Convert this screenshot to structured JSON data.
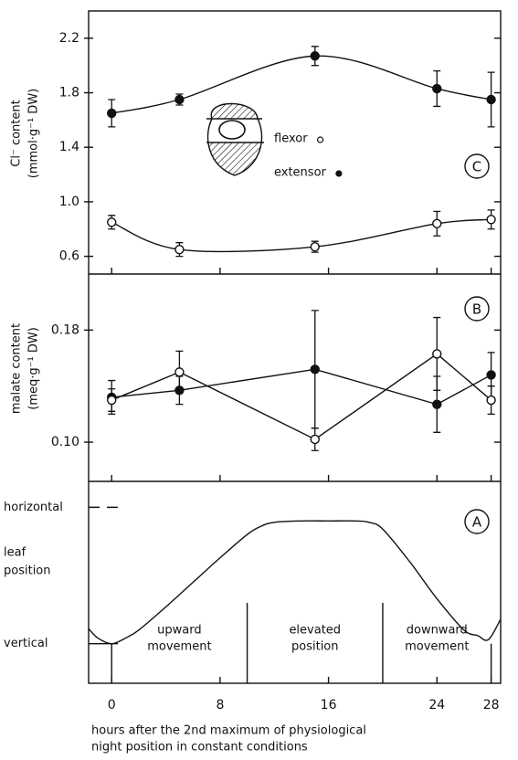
{
  "chart_data": [
    {
      "type": "line",
      "panel": "C",
      "smooth": true,
      "ylabel": [
        "Cl⁻ content",
        "(mmol·g⁻¹ DW)"
      ],
      "xlim": [
        -1.7,
        28.7
      ],
      "ylim": [
        0.47,
        2.4
      ],
      "yticks": [
        0.6,
        {
          "value": 1,
          "label": "1.0"
        },
        1.4,
        1.8,
        2.2
      ],
      "series": [
        {
          "name": "extensor",
          "color": "#111",
          "marker": "filled",
          "x": [
            0,
            5,
            15,
            24,
            28
          ],
          "values": [
            1.65,
            1.75,
            2.07,
            1.83,
            1.75
          ],
          "errors": [
            0.1,
            0.04,
            0.07,
            0.13,
            0.2
          ]
        },
        {
          "name": "flexor",
          "color": "#111",
          "marker": "open",
          "x": [
            0,
            5,
            15,
            24,
            28
          ],
          "values": [
            0.85,
            0.65,
            0.67,
            0.84,
            0.87
          ],
          "errors": [
            0.05,
            0.05,
            0.04,
            0.09,
            0.07
          ]
        }
      ]
    },
    {
      "type": "line",
      "panel": "B",
      "smooth": false,
      "ylabel": [
        "malate content",
        "(meq·g⁻¹ DW)"
      ],
      "xlim": [
        -1.7,
        28.7
      ],
      "ylim": [
        0.072,
        0.22
      ],
      "yticks": [
        {
          "value": 0.1,
          "label": "0.10"
        },
        0.18
      ],
      "series": [
        {
          "color": "#111",
          "marker": "filled",
          "x": [
            0,
            5,
            15,
            24,
            28
          ],
          "values": [
            0.132,
            0.137,
            0.152,
            0.127,
            0.148
          ],
          "errors": [
            0.012,
            0.01,
            0.042,
            0.02,
            0.016
          ]
        },
        {
          "color": "#111",
          "marker": "open",
          "x": [
            0,
            5,
            15,
            24,
            28
          ],
          "values": [
            0.13,
            0.15,
            0.102,
            0.163,
            0.13
          ],
          "errors": [
            0.008,
            0.015,
            0.008,
            0.026,
            0.01
          ]
        }
      ]
    },
    {
      "type": "line",
      "panel": "A",
      "smooth": true,
      "ylabel": [
        "leaf",
        "position"
      ],
      "xlim": [
        -1.7,
        28.7
      ],
      "ylim": [
        -0.29,
        1.19
      ],
      "yticks": [
        {
          "value": 0,
          "label": "vertical"
        },
        {
          "value": 1,
          "label": "horizontal"
        }
      ],
      "xticks": [
        0,
        8,
        16,
        24,
        28
      ],
      "xlabel": [
        "hours after the 2nd maximum of physiological",
        "night position in constant conditions"
      ],
      "dividers": [
        0,
        10,
        20,
        28
      ],
      "segments": [
        [
          "upward",
          "movement"
        ],
        [
          "elevated",
          "position"
        ],
        [
          "downward",
          "movement"
        ]
      ],
      "series": [
        {
          "color": "#111",
          "x": [
            -1.7,
            -1,
            0,
            1,
            2,
            4,
            6,
            8,
            10,
            11,
            12,
            14,
            16,
            18,
            19,
            20,
            22,
            24,
            26,
            27,
            27.8,
            28.7
          ],
          "values": [
            0.11,
            0.04,
            0,
            0.04,
            0.1,
            0.27,
            0.45,
            0.63,
            0.8,
            0.86,
            0.89,
            0.9,
            0.9,
            0.9,
            0.89,
            0.84,
            0.6,
            0.33,
            0.1,
            0.06,
            0.03,
            0.18
          ]
        }
      ]
    }
  ]
}
